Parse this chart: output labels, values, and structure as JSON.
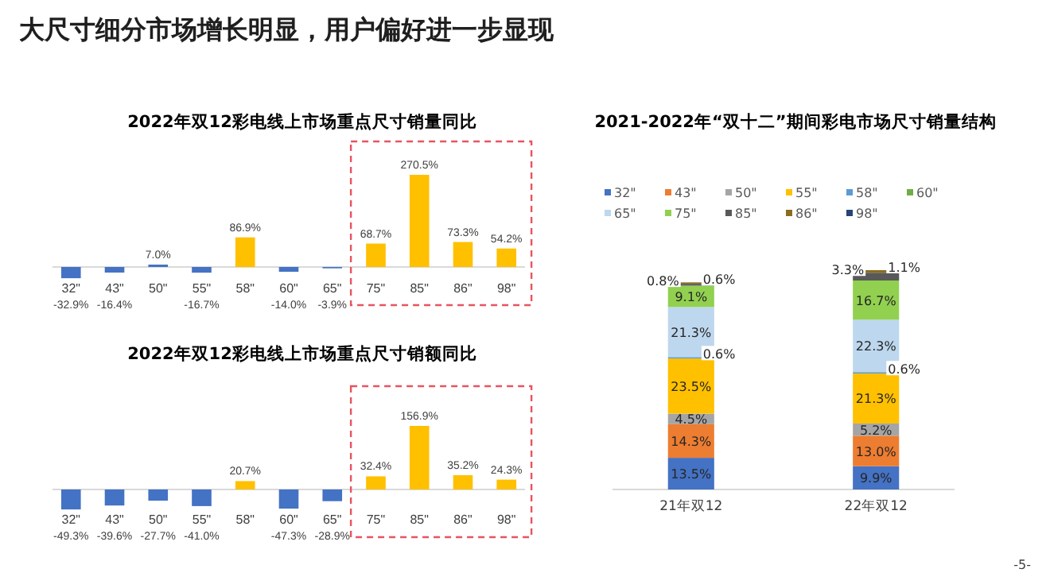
{
  "chart_data": [
    {
      "type": "bar",
      "title": "2022年双12彩电线上市场重点尺寸销量同比",
      "categories": [
        "32\"",
        "43\"",
        "50\"",
        "55\"",
        "58\"",
        "60\"",
        "65\"",
        "75\"",
        "85\"",
        "86\"",
        "98\""
      ],
      "values": [
        -32.9,
        -16.4,
        7.0,
        -16.7,
        86.9,
        -14.0,
        -3.9,
        68.7,
        270.5,
        73.3,
        54.2
      ],
      "value_labels": [
        "-32.9%",
        "-16.4%",
        "7.0%",
        "-16.7%",
        "86.9%",
        "-14.0%",
        "-3.9%",
        "68.7%",
        "270.5%",
        "73.3%",
        "54.2%"
      ],
      "colors": [
        "#4472c4",
        "#4472c4",
        "#4472c4",
        "#4472c4",
        "#ffc000",
        "#4472c4",
        "#4472c4",
        "#ffc000",
        "#ffc000",
        "#ffc000",
        "#ffc000"
      ],
      "annotations": [
        "大尺寸细分市场增长明显，用户偏好进一步显现"
      ]
    },
    {
      "type": "bar",
      "title": "2022年双12彩电线上市场重点尺寸销额同比",
      "categories": [
        "32\"",
        "43\"",
        "50\"",
        "55\"",
        "58\"",
        "60\"",
        "65\"",
        "75\"",
        "85\"",
        "86\"",
        "98\""
      ],
      "values": [
        -49.3,
        -39.6,
        -27.7,
        -41.0,
        20.7,
        -47.3,
        -28.9,
        32.4,
        156.9,
        35.2,
        24.3
      ],
      "value_labels": [
        "-49.3%",
        "-39.6%",
        "-27.7%",
        "-41.0%",
        "20.7%",
        "-47.3%",
        "-28.9%",
        "32.4%",
        "156.9%",
        "35.2%",
        "24.3%"
      ],
      "colors": [
        "#4472c4",
        "#4472c4",
        "#4472c4",
        "#4472c4",
        "#ffc000",
        "#4472c4",
        "#4472c4",
        "#ffc000",
        "#ffc000",
        "#ffc000",
        "#ffc000"
      ]
    },
    {
      "type": "bar",
      "stacked": true,
      "title": "2021-2022年“双十二”期间彩电市场尺寸销量结构",
      "categories": [
        "21年双12",
        "22年双12"
      ],
      "legend": "top",
      "series": [
        {
          "name": "32\"",
          "color": "#4472c4",
          "values": [
            13.5,
            9.9
          ],
          "value_labels": [
            "13.5%",
            "9.9%"
          ]
        },
        {
          "name": "43\"",
          "color": "#ed7d31",
          "values": [
            14.3,
            13.0
          ],
          "value_labels": [
            "14.3%",
            "13.0%"
          ]
        },
        {
          "name": "50\"",
          "color": "#a5a5a5",
          "values": [
            4.5,
            5.2
          ],
          "value_labels": [
            "4.5%",
            "5.2%"
          ]
        },
        {
          "name": "55\"",
          "color": "#ffc000",
          "values": [
            23.5,
            21.3
          ],
          "value_labels": [
            "23.5%",
            "21.3%"
          ]
        },
        {
          "name": "58\"",
          "color": "#5b9bd5",
          "values": [
            0.6,
            0.6
          ],
          "value_labels": [
            "0.6%",
            "0.6%"
          ]
        },
        {
          "name": "60\"",
          "color": "#70ad47",
          "values": [
            null,
            null
          ],
          "value_labels": [
            null,
            null
          ]
        },
        {
          "name": "65\"",
          "color": "#bdd7ee",
          "values": [
            21.3,
            22.3
          ],
          "value_labels": [
            "21.3%",
            "22.3%"
          ]
        },
        {
          "name": "75\"",
          "color": "#92d050",
          "values": [
            9.1,
            16.7
          ],
          "value_labels": [
            "9.1%",
            "16.7%"
          ]
        },
        {
          "name": "85\"",
          "color": "#595959",
          "values": [
            0.8,
            3.3
          ],
          "value_labels": [
            "0.8%",
            "3.3%"
          ]
        },
        {
          "name": "86\"",
          "color": "#8c6d1f",
          "values": [
            0.6,
            1.1
          ],
          "value_labels": [
            "0.6%",
            "1.1%"
          ]
        },
        {
          "name": "98\"",
          "color": "#264478",
          "values": [
            null,
            null
          ],
          "value_labels": [
            null,
            null
          ]
        }
      ],
      "annotations": [
        "-5-"
      ]
    }
  ]
}
